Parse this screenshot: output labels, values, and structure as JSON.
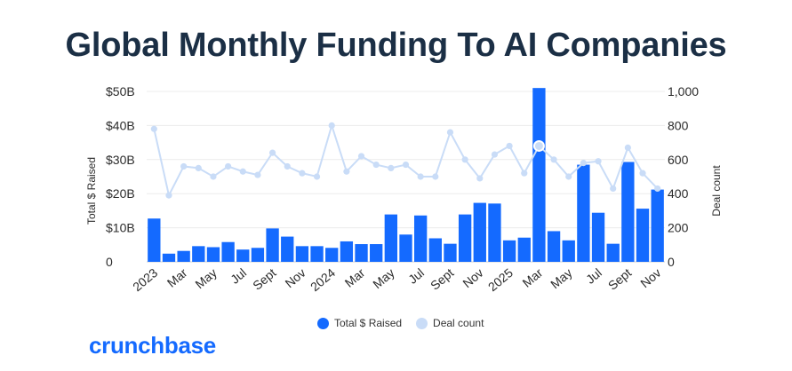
{
  "title": "Global Monthly Funding To AI Companies",
  "logo_text": "crunchbase",
  "colors": {
    "bar": "#146aff",
    "line": "#c9dcf7",
    "title": "#1b2f45",
    "logo": "#146aff"
  },
  "chart_data": {
    "type": "bar",
    "title": "Global Monthly Funding To AI Companies",
    "ylabel": "Total $ Raised",
    "y2label": "Deal count",
    "ylim": [
      0,
      50
    ],
    "y2lim": [
      0,
      1000
    ],
    "y_ticks": [
      "0",
      "$10B",
      "$20B",
      "$30B",
      "$40B",
      "$50B"
    ],
    "y_tick_values": [
      0,
      10,
      20,
      30,
      40,
      50
    ],
    "y2_ticks": [
      "0",
      "200",
      "400",
      "600",
      "800",
      "1,000"
    ],
    "y2_tick_values": [
      0,
      200,
      400,
      600,
      800,
      1000
    ],
    "grid": true,
    "x_tick_labels": [
      "2023",
      "Mar",
      "May",
      "Jul",
      "Sept",
      "Nov",
      "2024",
      "Mar",
      "May",
      "Jul",
      "Sept",
      "Nov",
      "2025",
      "Mar",
      "May",
      "Jul",
      "Sept",
      "Nov"
    ],
    "categories": [
      "Jan 2023",
      "Feb 2023",
      "Mar 2023",
      "Apr 2023",
      "May 2023",
      "Jun 2023",
      "Jul 2023",
      "Aug 2023",
      "Sep 2023",
      "Oct 2023",
      "Nov 2023",
      "Dec 2023",
      "Jan 2024",
      "Feb 2024",
      "Mar 2024",
      "Apr 2024",
      "May 2024",
      "Jun 2024",
      "Jul 2024",
      "Aug 2024",
      "Sep 2024",
      "Oct 2024",
      "Nov 2024",
      "Dec 2024",
      "Jan 2025",
      "Feb 2025",
      "Mar 2025",
      "Apr 2025",
      "May 2025",
      "Jun 2025",
      "Jul 2025",
      "Aug 2025",
      "Sep 2025",
      "Oct 2025",
      "Nov 2025"
    ],
    "series": [
      {
        "name": "Total $ Raised",
        "kind": "bar",
        "axis": "left",
        "values": [
          12.7,
          2.4,
          3.2,
          4.6,
          4.3,
          5.8,
          3.6,
          4.1,
          9.8,
          7.4,
          4.6,
          4.6,
          4.1,
          6.0,
          5.2,
          5.2,
          13.9,
          8.0,
          13.6,
          6.9,
          5.3,
          13.9,
          17.3,
          17.1,
          6.3,
          7.1,
          51.0,
          9.0,
          6.3,
          28.5,
          14.4,
          5.3,
          29.3,
          15.6,
          21.2
        ]
      },
      {
        "name": "Deal count",
        "kind": "line",
        "axis": "right",
        "values": [
          780,
          390,
          560,
          550,
          500,
          560,
          530,
          510,
          640,
          560,
          520,
          500,
          800,
          530,
          620,
          570,
          550,
          570,
          500,
          500,
          760,
          600,
          490,
          630,
          680,
          520,
          680,
          600,
          500,
          580,
          590,
          430,
          670,
          520,
          430
        ]
      }
    ],
    "highlight_index": 26,
    "legend": {
      "position": "bottom",
      "entries": [
        "Total $ Raised",
        "Deal count"
      ]
    }
  }
}
